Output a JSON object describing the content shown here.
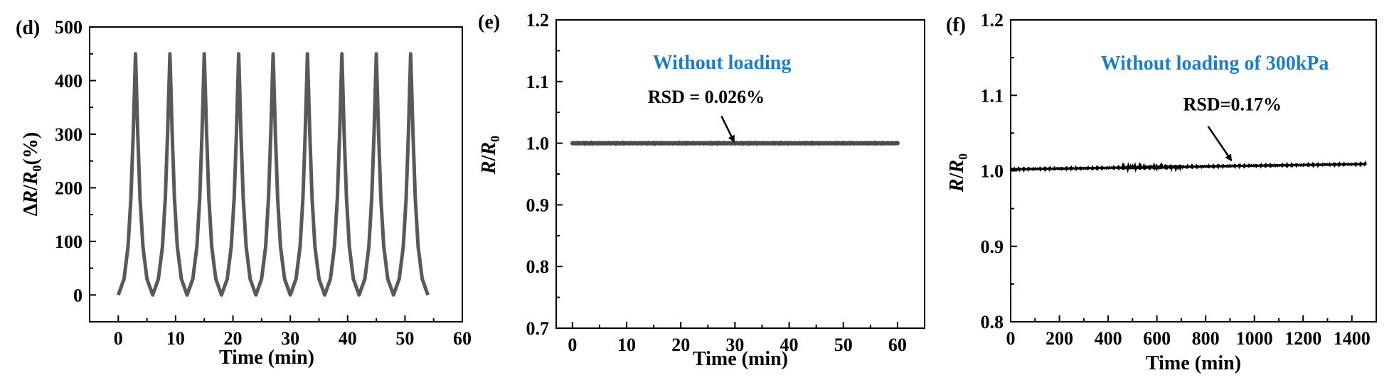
{
  "chart_data": [
    {
      "type": "line",
      "panel_label": "(d)",
      "title": "",
      "xlabel": "Time (min)",
      "ylabel": "ΔR/R0(%)",
      "xlim": [
        -5,
        60
      ],
      "ylim": [
        -50,
        500
      ],
      "x_ticks": [
        0,
        10,
        20,
        30,
        40,
        50,
        60
      ],
      "y_ticks": [
        0,
        100,
        200,
        300,
        400,
        500
      ],
      "grid": false,
      "line_color": "#595959",
      "series": [
        {
          "name": "",
          "x": [
            0,
            1,
            1.7,
            2.2,
            2.6,
            3,
            3.4,
            3.8,
            4.3,
            5,
            6
          ],
          "y": [
            0,
            30,
            90,
            180,
            300,
            450,
            300,
            180,
            90,
            30,
            0
          ],
          "periodic": {
            "period": 6,
            "cycles": 9,
            "end_x": 54
          }
        }
      ],
      "annotations": []
    },
    {
      "type": "scatter",
      "panel_label": "(e)",
      "title": "Without loading",
      "xlabel": "Time (min)",
      "ylabel": "R/R0",
      "xlim": [
        -3,
        65
      ],
      "ylim": [
        0.7,
        1.2
      ],
      "x_ticks": [
        0,
        10,
        20,
        30,
        40,
        50,
        60
      ],
      "y_ticks": [
        0.7,
        0.8,
        0.9,
        1.0,
        1.1,
        1.2
      ],
      "grid": false,
      "line_color": "#4a4a4a",
      "title_color": "#1f7cc1",
      "series": [
        {
          "name": "",
          "x_range": [
            0,
            60
          ],
          "y_value": 1.0
        }
      ],
      "annotations": [
        {
          "text": "RSD = 0.026%",
          "text_xy": [
            24.7,
            1.065
          ],
          "arrow_from": [
            27.5,
            1.044
          ],
          "arrow_to": [
            29.8,
            1.003
          ]
        }
      ]
    },
    {
      "type": "line",
      "panel_label": "(f)",
      "title": "Without loading of 300kPa",
      "xlabel": "Time (min)",
      "ylabel": "R/R0",
      "xlim": [
        0,
        1500
      ],
      "ylim": [
        0.8,
        1.2
      ],
      "x_ticks": [
        0,
        200,
        400,
        600,
        800,
        1000,
        1200,
        1400
      ],
      "y_ticks": [
        0.8,
        0.9,
        1.0,
        1.1,
        1.2
      ],
      "grid": false,
      "line_color": "#000000",
      "title_color": "#1f7cc1",
      "series": [
        {
          "name": "",
          "x_range": [
            0,
            1460
          ],
          "y_start": 1.002,
          "y_end": 1.009
        }
      ],
      "annotations": [
        {
          "text": "RSD=0.17%",
          "text_xy": [
            910,
            1.08
          ],
          "arrow_from": [
            810,
            1.059
          ],
          "arrow_to": [
            905,
            1.014
          ]
        }
      ]
    }
  ]
}
